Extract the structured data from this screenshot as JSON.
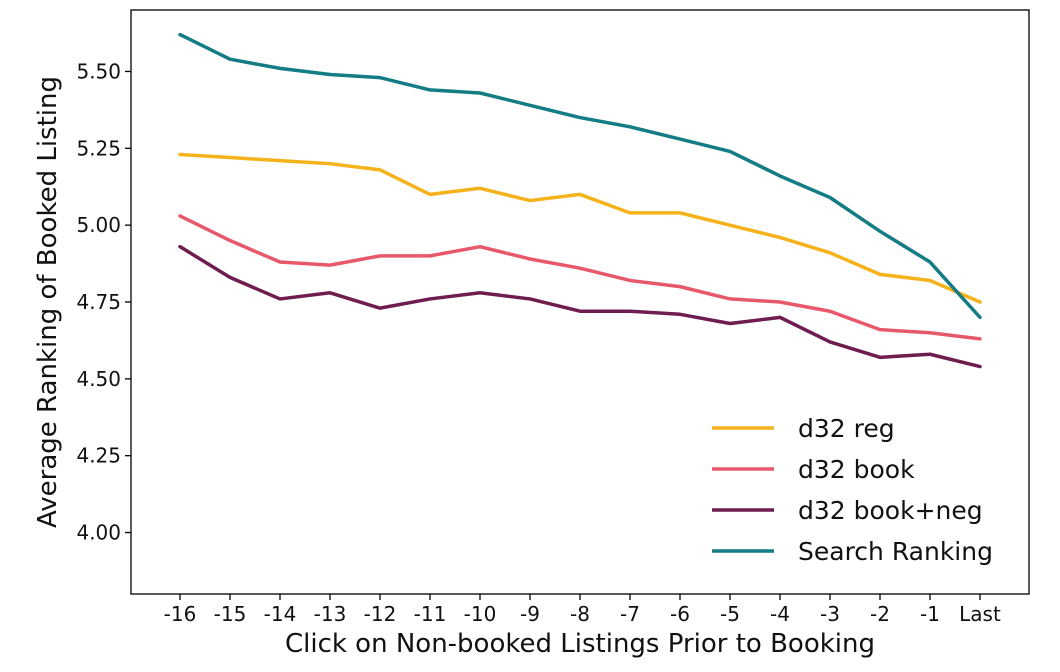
{
  "chart_data": {
    "type": "line",
    "title": "",
    "xlabel": "Click on Non-booked Listings Prior to Booking",
    "ylabel": "Average Ranking of Booked Listing",
    "categories": [
      "-16",
      "-15",
      "-14",
      "-13",
      "-12",
      "-11",
      "-10",
      "-9",
      "-8",
      "-7",
      "-6",
      "-5",
      "-4",
      "-3",
      "-2",
      "-1",
      "Last"
    ],
    "ylim": [
      3.8,
      5.7
    ],
    "yticks": [
      "4.00",
      "4.25",
      "4.50",
      "4.75",
      "5.00",
      "5.25",
      "5.50"
    ],
    "grid": false,
    "legend_position": "bottom-right",
    "series": [
      {
        "name": "d32 reg",
        "color": "#F5B21B",
        "values": [
          5.23,
          5.22,
          5.21,
          5.2,
          5.18,
          5.1,
          5.12,
          5.08,
          5.1,
          5.04,
          5.04,
          5.0,
          4.96,
          4.91,
          4.84,
          4.82,
          4.75
        ]
      },
      {
        "name": "d32 book",
        "color": "#E8586B",
        "values": [
          5.03,
          4.95,
          4.88,
          4.87,
          4.9,
          4.9,
          4.93,
          4.89,
          4.86,
          4.82,
          4.8,
          4.76,
          4.75,
          4.72,
          4.66,
          4.65,
          4.63
        ]
      },
      {
        "name": "d32 book+neg",
        "color": "#6F1D4F",
        "values": [
          4.93,
          4.83,
          4.76,
          4.78,
          4.73,
          4.76,
          4.78,
          4.76,
          4.72,
          4.72,
          4.71,
          4.68,
          4.7,
          4.62,
          4.57,
          4.58,
          4.54
        ]
      },
      {
        "name": "Search Ranking",
        "color": "#147C84",
        "values": [
          5.62,
          5.54,
          5.51,
          5.49,
          5.48,
          5.44,
          5.43,
          5.39,
          5.35,
          5.32,
          5.28,
          5.24,
          5.16,
          5.09,
          4.98,
          4.88,
          4.7
        ]
      }
    ]
  }
}
